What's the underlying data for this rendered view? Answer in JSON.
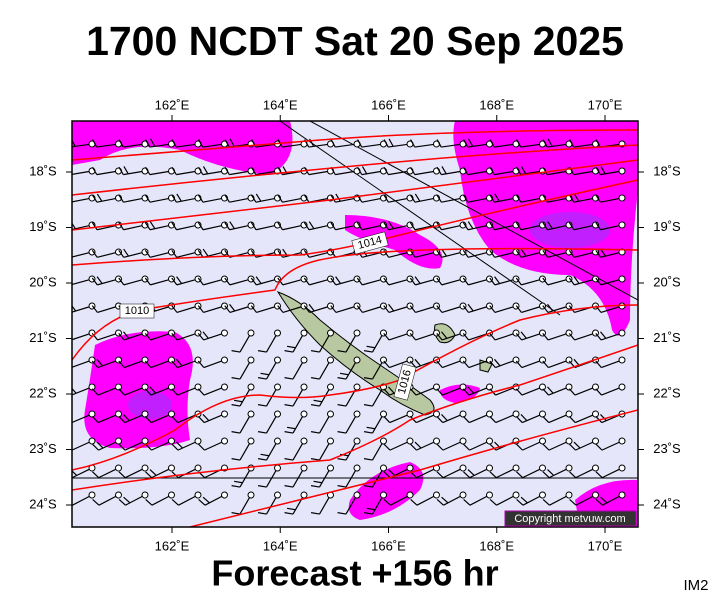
{
  "header": {
    "title": "1700 NCDT Sat 20 Sep 2025"
  },
  "footer": {
    "text": "Forecast +156 hr",
    "corner": "IM2"
  },
  "map": {
    "lon_labels": [
      "162˚E",
      "164˚E",
      "166˚E",
      "168˚E",
      "170˚E"
    ],
    "lat_labels": [
      "18˚S",
      "19˚S",
      "20˚S",
      "21˚S",
      "22˚S",
      "23˚S",
      "24˚S"
    ],
    "isobar_labels": [
      "1014",
      "1010",
      "1016"
    ],
    "copyright": "Copyright metvuw.com"
  }
}
